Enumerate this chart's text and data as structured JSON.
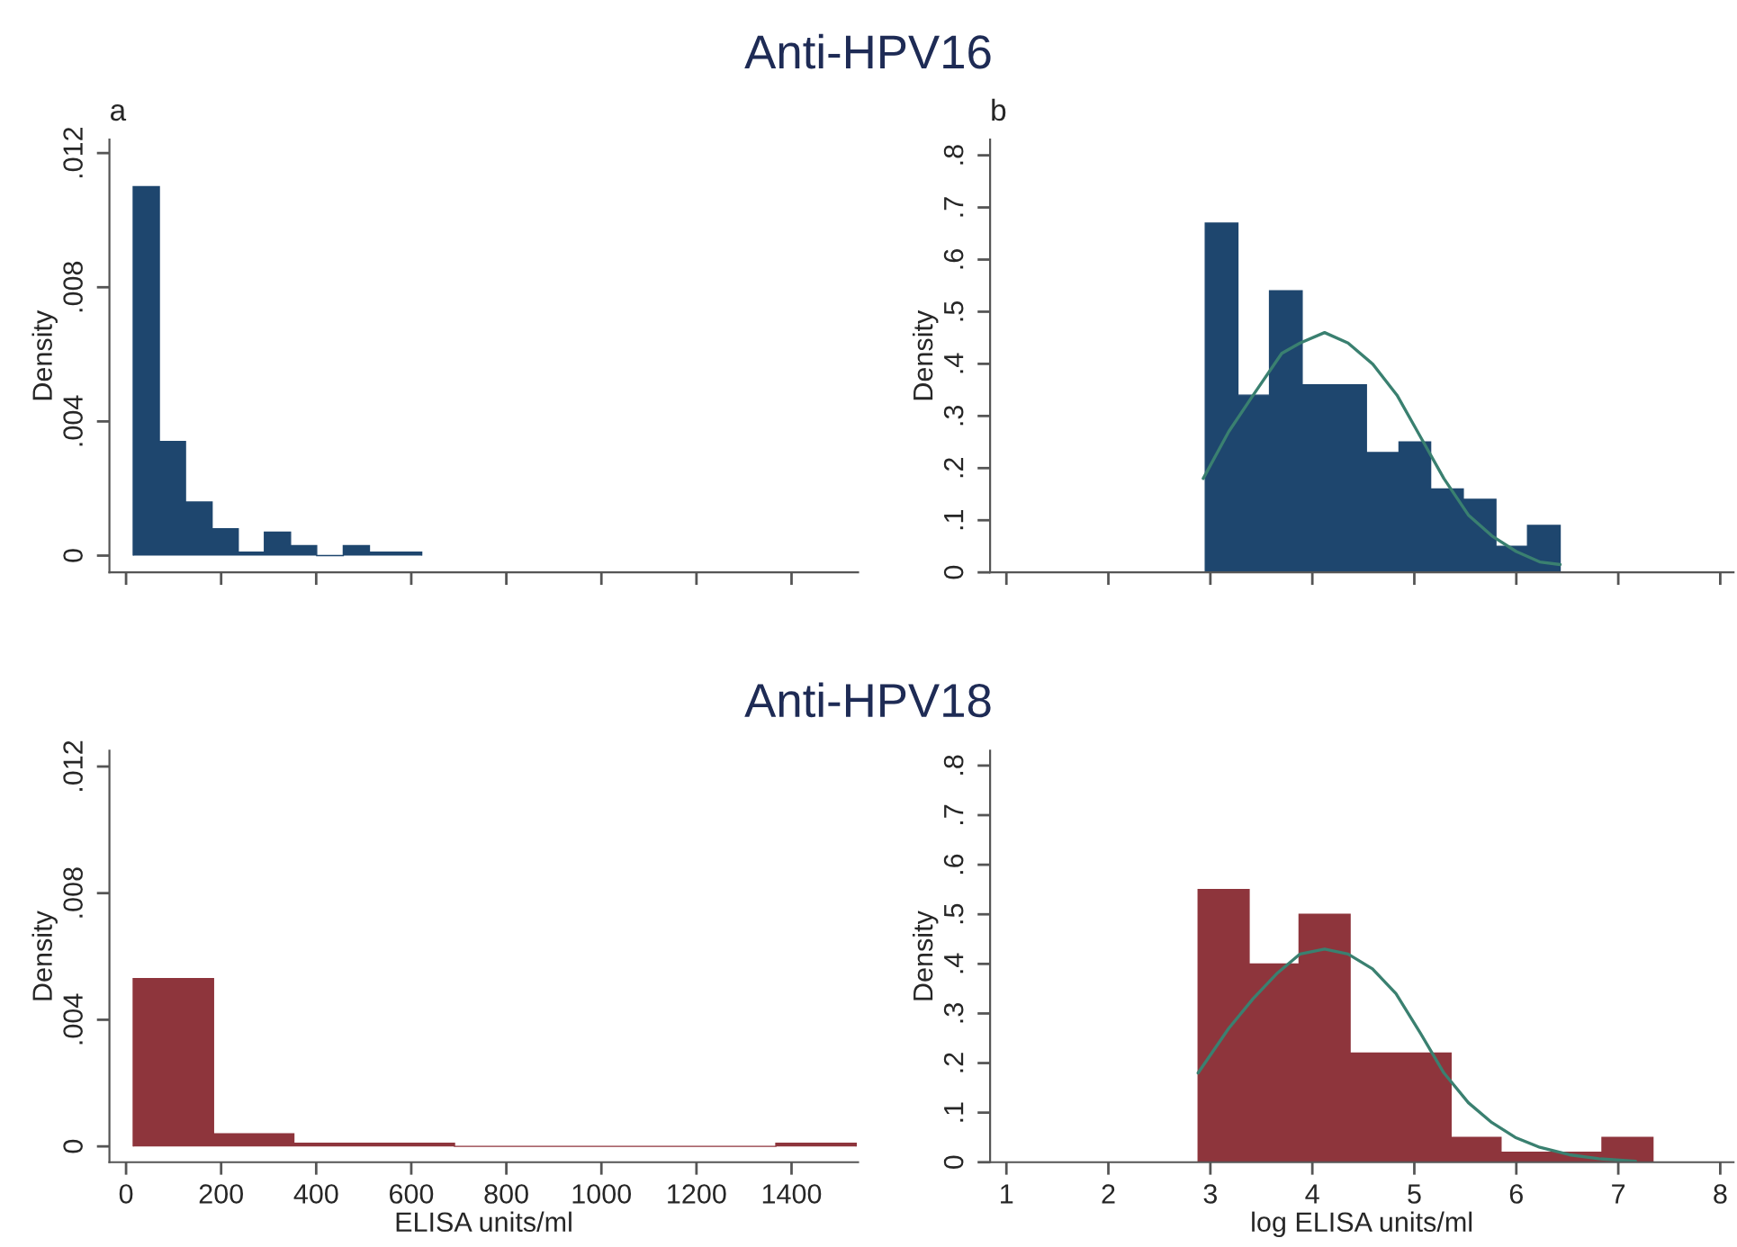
{
  "chart_data": [
    {
      "type": "histogram",
      "title": "Anti-HPV16",
      "ylabel": "Density",
      "annotations": [
        "a"
      ],
      "color": "#1e466e",
      "bins": [
        15,
        70,
        125,
        181,
        236,
        291,
        346,
        401,
        457,
        512,
        567,
        622
      ],
      "values": [
        0.011,
        0.0034,
        0.0016,
        0.0008,
        0.0001,
        0.0007,
        0.0003,
        0,
        0.0003,
        0.0001,
        0.0001
      ],
      "xlim": [
        -35,
        1540
      ],
      "xticks": [
        0,
        200,
        400,
        600,
        800,
        1000,
        1200,
        1400
      ],
      "ylim": [
        -0.0005,
        0.0124
      ],
      "yticks": [
        {
          "value": 0,
          "label": "0"
        },
        {
          "value": 0.004,
          "label": ".004"
        },
        {
          "value": 0.008,
          "label": ".008"
        },
        {
          "value": 0.012,
          "label": ".012"
        }
      ],
      "tick_labels": "y",
      "grid": false,
      "legend": false
    },
    {
      "type": "histogram",
      "ylabel": "Density",
      "annotations": [
        "b"
      ],
      "color": "#1e466e",
      "bins": [
        2.95,
        3.27,
        3.58,
        3.9,
        4.21,
        4.53,
        4.85,
        5.16,
        5.48,
        5.8,
        6.11,
        6.43
      ],
      "values": [
        0.67,
        0.34,
        0.54,
        0.36,
        0.36,
        0.23,
        0.25,
        0.16,
        0.14,
        0.05,
        0.09
      ],
      "series": [
        {
          "type": "line",
          "color": "#3a8070",
          "x": [
            2.93,
            3.18,
            3.42,
            3.7,
            3.88,
            4.12,
            4.35,
            4.59,
            4.83,
            5.06,
            5.29,
            5.53,
            5.76,
            6.0,
            6.23,
            6.43
          ],
          "values": [
            0.18,
            0.27,
            0.34,
            0.42,
            0.44,
            0.46,
            0.44,
            0.4,
            0.34,
            0.26,
            0.18,
            0.11,
            0.07,
            0.04,
            0.02,
            0.015
          ]
        }
      ],
      "xlim": [
        0.84,
        8.13
      ],
      "xticks": [
        1,
        2,
        3,
        4,
        5,
        6,
        7,
        8
      ],
      "ylim": [
        0,
        0.83
      ],
      "yticks": [
        {
          "value": 0,
          "label": "0"
        },
        {
          "value": 0.1,
          "label": ".1"
        },
        {
          "value": 0.2,
          "label": ".2"
        },
        {
          "value": 0.3,
          "label": ".3"
        },
        {
          "value": 0.4,
          "label": ".4"
        },
        {
          "value": 0.5,
          "label": ".5"
        },
        {
          "value": 0.6,
          "label": ".6"
        },
        {
          "value": 0.7,
          "label": ".7"
        },
        {
          "value": 0.8,
          "label": ".8"
        }
      ],
      "tick_labels": "y",
      "grid": false,
      "legend": false
    },
    {
      "type": "histogram",
      "title": "Anti-HPV18",
      "ylabel": "Density",
      "xlabel": "ELISA units/ml",
      "color": "#8e353c",
      "bins": [
        15,
        184,
        353,
        522,
        691,
        860,
        1029,
        1198,
        1367,
        1536
      ],
      "values": [
        0.0053,
        0.0004,
        0.0001,
        0.0001,
        0,
        0,
        0,
        0,
        0.0001
      ],
      "xlim": [
        -35,
        1540
      ],
      "xticks": [
        0,
        200,
        400,
        600,
        800,
        1000,
        1200,
        1400
      ],
      "ylim": [
        -0.0005,
        0.0125
      ],
      "yticks": [
        {
          "value": 0,
          "label": "0"
        },
        {
          "value": 0.004,
          "label": ".004"
        },
        {
          "value": 0.008,
          "label": ".008"
        },
        {
          "value": 0.012,
          "label": ".012"
        }
      ],
      "grid": false,
      "legend": false
    },
    {
      "type": "histogram",
      "ylabel": "Density",
      "xlabel": "log ELISA units/ml",
      "color": "#8e353c",
      "bins": [
        2.88,
        3.38,
        3.87,
        4.37,
        4.86,
        5.36,
        5.85,
        6.35,
        6.84,
        7.34
      ],
      "values": [
        0.55,
        0.4,
        0.5,
        0.22,
        0.22,
        0.05,
        0.02,
        0.02,
        0.05
      ],
      "series": [
        {
          "type": "line",
          "color": "#3a8070",
          "x": [
            2.88,
            3.18,
            3.42,
            3.65,
            3.88,
            4.12,
            4.35,
            4.59,
            4.82,
            5.06,
            5.29,
            5.53,
            5.76,
            5.99,
            6.23,
            6.52,
            6.81,
            7.17
          ],
          "values": [
            0.18,
            0.27,
            0.33,
            0.38,
            0.42,
            0.43,
            0.42,
            0.39,
            0.34,
            0.26,
            0.18,
            0.12,
            0.08,
            0.05,
            0.03,
            0.015,
            0.007,
            0.002
          ]
        }
      ],
      "xlim": [
        0.84,
        8.13
      ],
      "xticks": [
        1,
        2,
        3,
        4,
        5,
        6,
        7,
        8
      ],
      "ylim": [
        0,
        0.83
      ],
      "yticks": [
        {
          "value": 0,
          "label": "0"
        },
        {
          "value": 0.1,
          "label": ".1"
        },
        {
          "value": 0.2,
          "label": ".2"
        },
        {
          "value": 0.3,
          "label": ".3"
        },
        {
          "value": 0.4,
          "label": ".4"
        },
        {
          "value": 0.5,
          "label": ".5"
        },
        {
          "value": 0.6,
          "label": ".6"
        },
        {
          "value": 0.7,
          "label": ".7"
        },
        {
          "value": 0.8,
          "label": ".8"
        }
      ],
      "grid": false,
      "legend": false
    }
  ]
}
